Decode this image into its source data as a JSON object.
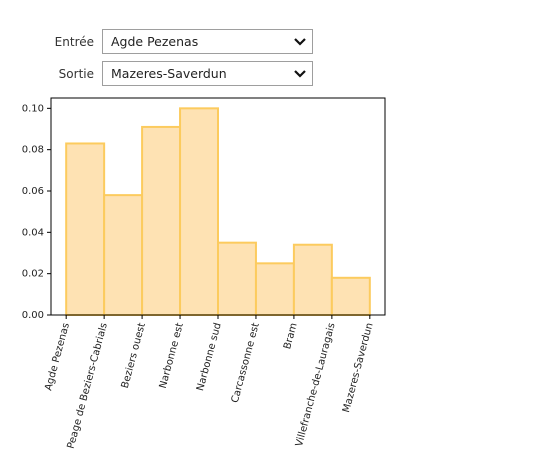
{
  "form": {
    "entry_label": "Entrée",
    "entry_value": "Agde Pezenas",
    "exit_label": "Sortie",
    "exit_value": "Mazeres-Saverdun"
  },
  "chart_data": {
    "type": "bar",
    "categories": [
      "Agde Pezenas",
      "Peage de Beziers-Cabrials",
      "Beziers ouest",
      "Narbonne est",
      "Narbonne sud",
      "Carcassonne est",
      "Bram",
      "Villefranche-de-Lauragais",
      "Mazeres-Saverdun"
    ],
    "values": [
      0.083,
      0.058,
      0.091,
      0.1,
      0.035,
      0.025,
      0.034,
      0.018,
      null
    ],
    "color": "#fee2b3",
    "edge_color": "#fccb5e",
    "ylim": [
      0,
      0.105
    ],
    "yticks": [
      {
        "value": 0,
        "label": "0.00"
      },
      {
        "value": 0.02,
        "label": "0.02"
      },
      {
        "value": 0.04,
        "label": "0.04"
      },
      {
        "value": 0.06,
        "label": "0.06"
      },
      {
        "value": 0.08,
        "label": "0.08"
      },
      {
        "value": 0.1,
        "label": "0.10"
      }
    ],
    "grid": false
  }
}
